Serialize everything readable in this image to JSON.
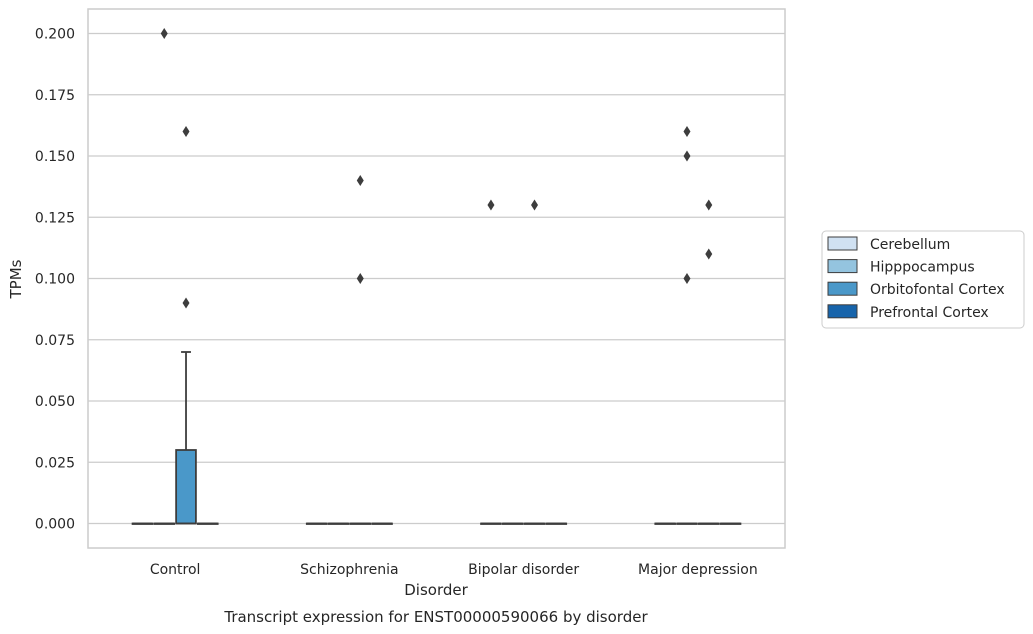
{
  "chart_data": {
    "type": "box",
    "title": "",
    "caption": "Transcript expression for ENST00000590066 by disorder",
    "xlabel": "Disorder",
    "ylabel": "TPMs",
    "ylim": [
      -0.01,
      0.21
    ],
    "yticks": [
      "0.000",
      "0.025",
      "0.050",
      "0.075",
      "0.100",
      "0.125",
      "0.150",
      "0.175",
      "0.200"
    ],
    "grid": true,
    "legend_position": "right",
    "categories": [
      "Control",
      "Schizophrenia",
      "Bipolar disorder",
      "Major depression"
    ],
    "series": [
      {
        "name": "Cerebellum",
        "color": "#d0e1f2",
        "boxes": [
          {
            "q1": 0,
            "median": 0,
            "q3": 0,
            "whisker_low": 0,
            "whisker_high": 0,
            "outliers": []
          },
          {
            "q1": 0,
            "median": 0,
            "q3": 0,
            "whisker_low": 0,
            "whisker_high": 0,
            "outliers": []
          },
          {
            "q1": 0,
            "median": 0,
            "q3": 0,
            "whisker_low": 0,
            "whisker_high": 0,
            "outliers": [
              0.13
            ]
          },
          {
            "q1": 0,
            "median": 0,
            "q3": 0,
            "whisker_low": 0,
            "whisker_high": 0,
            "outliers": []
          }
        ]
      },
      {
        "name": "Hipppocampus",
        "color": "#94c4df",
        "boxes": [
          {
            "q1": 0,
            "median": 0,
            "q3": 0,
            "whisker_low": 0,
            "whisker_high": 0,
            "outliers": [
              0.2
            ]
          },
          {
            "q1": 0,
            "median": 0,
            "q3": 0,
            "whisker_low": 0,
            "whisker_high": 0,
            "outliers": []
          },
          {
            "q1": 0,
            "median": 0,
            "q3": 0,
            "whisker_low": 0,
            "whisker_high": 0,
            "outliers": []
          },
          {
            "q1": 0,
            "median": 0,
            "q3": 0,
            "whisker_low": 0,
            "whisker_high": 0,
            "outliers": [
              0.16,
              0.15,
              0.1
            ]
          }
        ]
      },
      {
        "name": "Orbitofontal Cortex",
        "color": "#4a98c9",
        "boxes": [
          {
            "q1": 0,
            "median": 0,
            "q3": 0.03,
            "whisker_low": 0,
            "whisker_high": 0.07,
            "outliers": [
              0.16,
              0.09
            ]
          },
          {
            "q1": 0,
            "median": 0,
            "q3": 0,
            "whisker_low": 0,
            "whisker_high": 0,
            "outliers": [
              0.14,
              0.1
            ]
          },
          {
            "q1": 0,
            "median": 0,
            "q3": 0,
            "whisker_low": 0,
            "whisker_high": 0,
            "outliers": [
              0.13
            ]
          },
          {
            "q1": 0,
            "median": 0,
            "q3": 0,
            "whisker_low": 0,
            "whisker_high": 0,
            "outliers": [
              0.13,
              0.11
            ]
          }
        ]
      },
      {
        "name": "Prefrontal Cortex",
        "color": "#1764ab",
        "boxes": [
          {
            "q1": 0,
            "median": 0,
            "q3": 0,
            "whisker_low": 0,
            "whisker_high": 0,
            "outliers": []
          },
          {
            "q1": 0,
            "median": 0,
            "q3": 0,
            "whisker_low": 0,
            "whisker_high": 0,
            "outliers": []
          },
          {
            "q1": 0,
            "median": 0,
            "q3": 0,
            "whisker_low": 0,
            "whisker_high": 0,
            "outliers": []
          },
          {
            "q1": 0,
            "median": 0,
            "q3": 0,
            "whisker_low": 0,
            "whisker_high": 0,
            "outliers": []
          }
        ]
      }
    ]
  }
}
